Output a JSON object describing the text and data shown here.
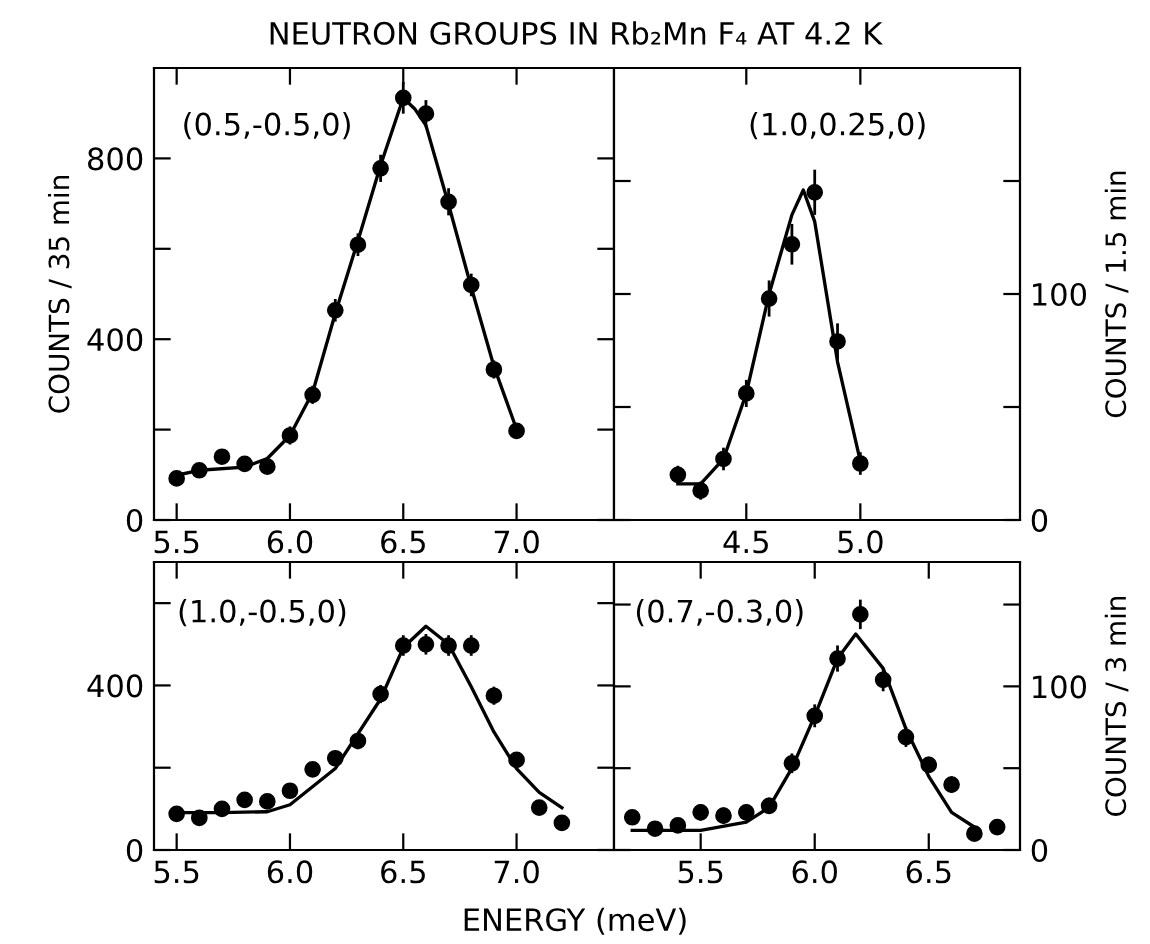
{
  "chart_data": [
    {
      "type": "scatter",
      "title": "NEUTRON GROUPS IN Rb₂Mn F₄ AT 4.2 K",
      "ylabel": "COUNTS / 35 min",
      "annotations": [
        "(0.5,-0.5,0)"
      ],
      "xlim": [
        5.4,
        7.43
      ],
      "ylim": [
        0,
        1000
      ],
      "xticks": [
        5.5,
        {
          "value": 6,
          "label": "6.0"
        },
        6.5,
        {
          "value": 7,
          "label": "7.0"
        }
      ],
      "yticks": [
        0,
        {
          "value": 200,
          "label": null
        },
        400,
        {
          "value": 600,
          "label": null
        },
        800
      ],
      "series": [
        {
          "marker": "circle",
          "color": "#000000",
          "x": [
            5.5,
            5.6,
            5.7,
            5.8,
            5.9,
            6.0,
            6.1,
            6.2,
            6.3,
            6.4,
            6.5,
            6.6,
            6.7,
            6.8,
            6.9,
            7.0
          ],
          "values": [
            92,
            110,
            140,
            124,
            118,
            187,
            277,
            464,
            609,
            778,
            934,
            899,
            704,
            520,
            333,
            197
          ],
          "errors": [
            15,
            15,
            15,
            15,
            15,
            20,
            20,
            25,
            25,
            30,
            35,
            30,
            30,
            25,
            20,
            15
          ]
        },
        {
          "type": "line",
          "color": "#000000",
          "x": [
            5.5,
            5.6,
            5.8,
            5.9,
            6.0,
            6.1,
            6.2,
            6.3,
            6.4,
            6.5,
            6.55,
            6.6,
            6.7,
            6.8,
            6.9,
            7.0
          ],
          "values": [
            99,
            110,
            117,
            136,
            187,
            282,
            457,
            618,
            785,
            934,
            910,
            873,
            698,
            515,
            340,
            201
          ]
        }
      ]
    },
    {
      "type": "scatter",
      "y2label": "COUNTS / 1.5 min",
      "annotations": [
        "(1.0,0.25,0)"
      ],
      "xlim": [
        3.92,
        5.7
      ],
      "ylim": [
        0,
        200
      ],
      "xticks": [
        4.5,
        {
          "value": 5,
          "label": "5.0"
        }
      ],
      "yticks": [
        0,
        {
          "value": 50,
          "label": null
        },
        100,
        {
          "value": 150,
          "label": null
        }
      ],
      "series": [
        {
          "marker": "circle",
          "color": "#000000",
          "x": [
            4.2,
            4.3,
            4.4,
            4.5,
            4.6,
            4.7,
            4.8,
            4.9,
            5.0
          ],
          "values": [
            20,
            13,
            27,
            56,
            98,
            122,
            145,
            79,
            25
          ],
          "errors": [
            4,
            4,
            5,
            6,
            8,
            9,
            10,
            8,
            5
          ]
        },
        {
          "type": "line",
          "color": "#000000",
          "x": [
            4.2,
            4.3,
            4.4,
            4.5,
            4.6,
            4.7,
            4.75,
            4.8,
            4.9,
            5.0
          ],
          "values": [
            16,
            16,
            27,
            56,
            100,
            135,
            146,
            132,
            70,
            26
          ]
        }
      ]
    },
    {
      "type": "scatter",
      "xlabel": "ENERGY (meV)",
      "annotations": [
        "(1.0,-0.5,0)"
      ],
      "xlim": [
        5.4,
        7.43
      ],
      "ylim": [
        0,
        700
      ],
      "xticks": [
        5.5,
        {
          "value": 6,
          "label": "6.0"
        },
        6.5,
        {
          "value": 7,
          "label": "7.0"
        }
      ],
      "yticks": [
        0,
        {
          "value": 200,
          "label": null
        },
        400,
        {
          "value": 600,
          "label": null
        }
      ],
      "series": [
        {
          "marker": "circle",
          "color": "#000000",
          "x": [
            5.5,
            5.6,
            5.7,
            5.8,
            5.9,
            6.0,
            6.1,
            6.2,
            6.3,
            6.4,
            6.5,
            6.6,
            6.7,
            6.8,
            6.9,
            7.0,
            7.1,
            7.2
          ],
          "values": [
            88,
            78,
            100,
            122,
            118,
            144,
            196,
            223,
            265,
            379,
            497,
            500,
            497,
            497,
            375,
            219,
            103,
            66
          ],
          "errors": [
            12,
            12,
            12,
            14,
            14,
            15,
            17,
            18,
            20,
            22,
            25,
            25,
            25,
            25,
            22,
            18,
            15,
            12
          ]
        },
        {
          "type": "line",
          "color": "#000000",
          "x": [
            5.5,
            5.7,
            5.9,
            6.0,
            6.2,
            6.4,
            6.5,
            6.6,
            6.7,
            6.8,
            6.9,
            7.0,
            7.1,
            7.2
          ],
          "values": [
            91,
            91,
            93,
            110,
            198,
            367,
            492,
            544,
            500,
            397,
            287,
            198,
            140,
            103
          ]
        }
      ]
    },
    {
      "type": "scatter",
      "y2label": "COUNTS / 3 min",
      "annotations": [
        "(0.7,-0.3,0)"
      ],
      "xlim": [
        5.12,
        6.9
      ],
      "ylim": [
        0,
        176
      ],
      "xticks": [
        5.5,
        {
          "value": 6,
          "label": "6.0"
        },
        6.5
      ],
      "yticks": [
        0,
        {
          "value": 50,
          "label": null
        },
        100,
        {
          "value": 150,
          "label": null
        }
      ],
      "series": [
        {
          "marker": "circle",
          "color": "#000000",
          "x": [
            5.2,
            5.3,
            5.4,
            5.5,
            5.6,
            5.7,
            5.8,
            5.9,
            6.0,
            6.1,
            6.2,
            6.3,
            6.4,
            6.5,
            6.6,
            6.7,
            6.8
          ],
          "values": [
            20,
            13,
            15,
            23,
            21,
            23,
            27,
            53,
            82,
            117,
            144,
            104,
            69,
            52,
            40,
            10,
            14
          ],
          "errors": [
            4,
            4,
            4,
            5,
            5,
            5,
            5,
            6,
            7,
            8,
            9,
            7,
            6,
            5,
            5,
            4,
            4
          ]
        },
        {
          "type": "line",
          "color": "#000000",
          "x": [
            5.2,
            5.5,
            5.7,
            5.8,
            5.9,
            6.0,
            6.1,
            6.18,
            6.3,
            6.4,
            6.5,
            6.6,
            6.7
          ],
          "values": [
            12,
            12,
            17,
            26,
            50,
            82,
            117,
            132,
            111,
            74,
            45,
            23,
            14
          ]
        }
      ]
    }
  ]
}
